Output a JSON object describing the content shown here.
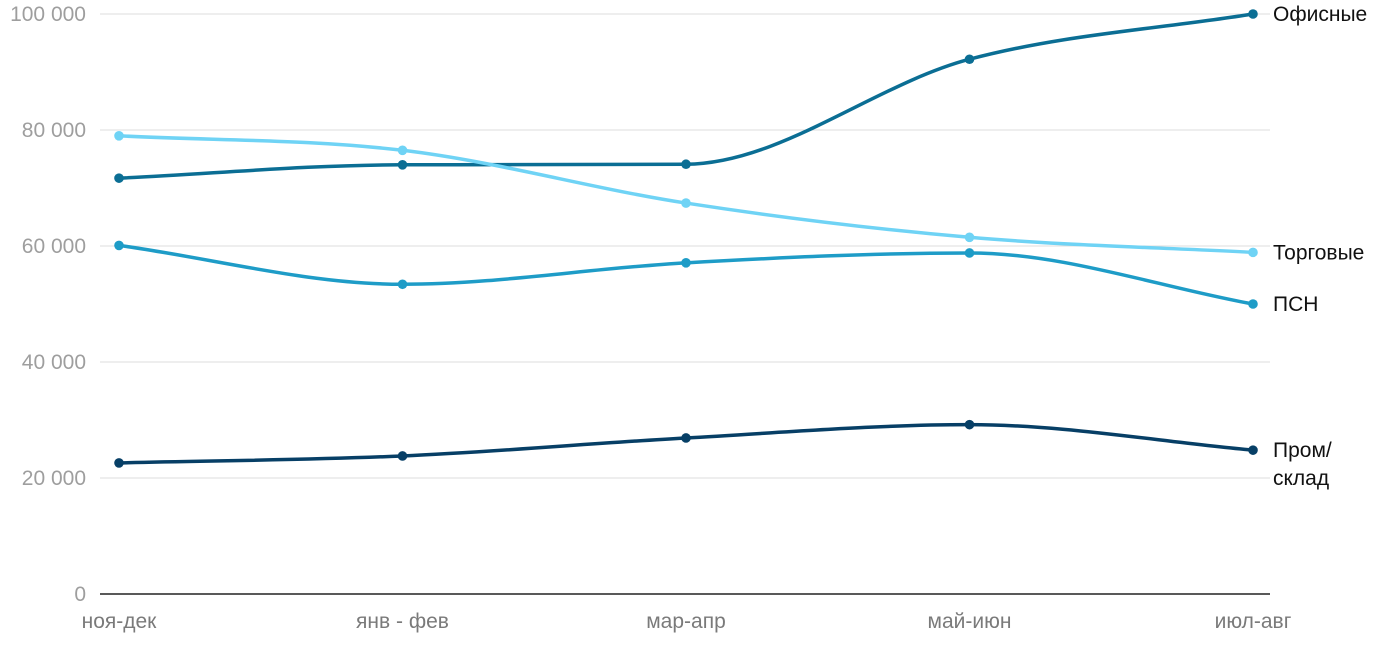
{
  "chart_data": {
    "type": "line",
    "categories": [
      "ноя-дек",
      "янв - фев",
      "мар-апр",
      "май-июн",
      "июл-авг"
    ],
    "ylim": [
      0,
      100000
    ],
    "yticks": [
      0,
      20000,
      40000,
      60000,
      80000,
      100000
    ],
    "ytick_labels": [
      "0",
      "20 000",
      "40 000",
      "60 000",
      "80 000",
      "100 000"
    ],
    "grid": true,
    "legend": "direct labels at right end of lines",
    "series": [
      {
        "name": "Офисные",
        "label_lines": [
          "Офисные"
        ],
        "color": "#0b6e94",
        "values": [
          71700,
          74000,
          74100,
          92200,
          100000
        ]
      },
      {
        "name": "Торговые",
        "label_lines": [
          "Торговые"
        ],
        "color": "#6fd3f5",
        "values": [
          79000,
          76500,
          67400,
          61500,
          58900
        ]
      },
      {
        "name": "ПСН",
        "label_lines": [
          "ПСН"
        ],
        "color": "#1e9cc7",
        "values": [
          60100,
          53400,
          57100,
          58800,
          50000
        ]
      },
      {
        "name": "Пром/ склад",
        "label_lines": [
          "Пром/",
          "склад"
        ],
        "color": "#073f66",
        "values": [
          22600,
          23800,
          26900,
          29200,
          24800
        ]
      }
    ]
  }
}
